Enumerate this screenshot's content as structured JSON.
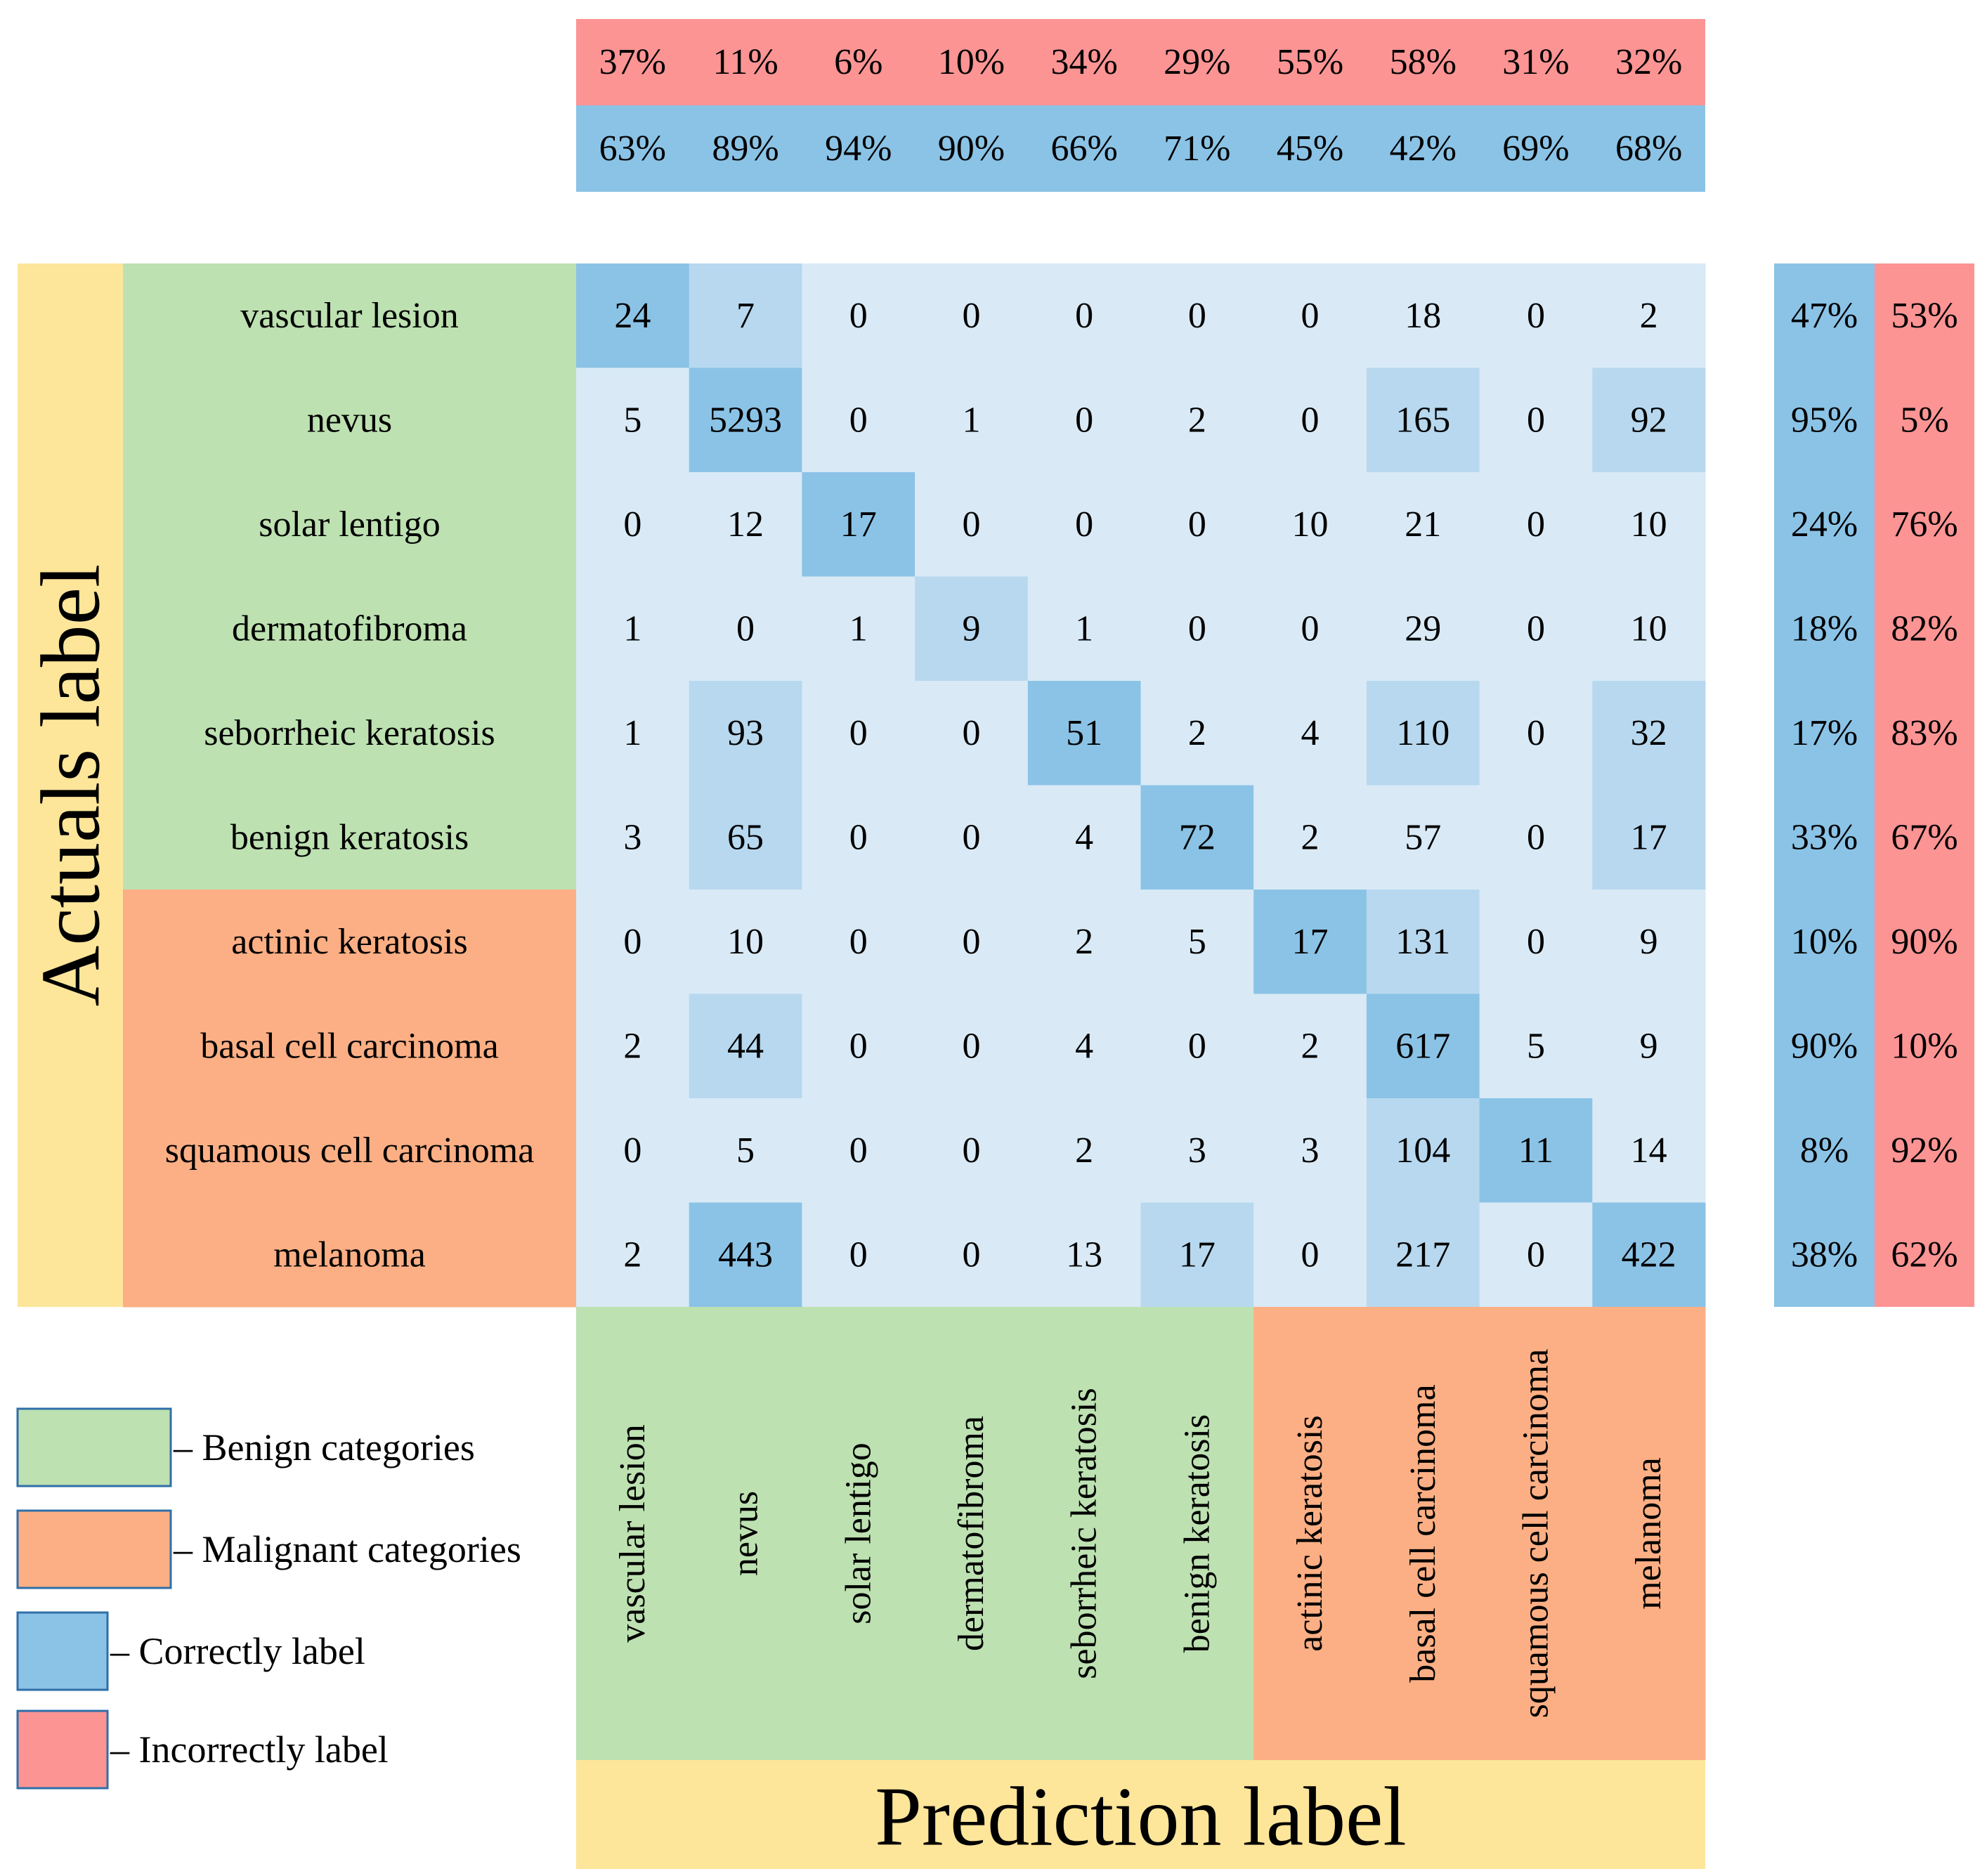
{
  "chart_data": {
    "type": "heatmap",
    "title": "",
    "ylabel": "Actuals label",
    "xlabel": "Prediction label",
    "categories": [
      "vascular lesion",
      "nevus",
      "solar lentigo",
      "dermatofibroma",
      "seborrheic keratosis",
      "benign keratosis",
      "actinic keratosis",
      "basal cell carcinoma",
      "squamous cell carcinoma",
      "melanoma"
    ],
    "category_group": [
      "benign",
      "benign",
      "benign",
      "benign",
      "benign",
      "benign",
      "malignant",
      "malignant",
      "malignant",
      "malignant"
    ],
    "matrix": [
      [
        24,
        7,
        0,
        0,
        0,
        0,
        0,
        18,
        0,
        2
      ],
      [
        5,
        5293,
        0,
        1,
        0,
        2,
        0,
        165,
        0,
        92
      ],
      [
        0,
        12,
        17,
        0,
        0,
        0,
        10,
        21,
        0,
        10
      ],
      [
        1,
        0,
        1,
        9,
        1,
        0,
        0,
        29,
        0,
        10
      ],
      [
        1,
        93,
        0,
        0,
        51,
        2,
        4,
        110,
        0,
        32
      ],
      [
        3,
        65,
        0,
        0,
        4,
        72,
        2,
        57,
        0,
        17
      ],
      [
        0,
        10,
        0,
        0,
        2,
        5,
        17,
        131,
        0,
        9
      ],
      [
        2,
        44,
        0,
        0,
        4,
        0,
        2,
        617,
        5,
        9
      ],
      [
        0,
        5,
        0,
        0,
        2,
        3,
        3,
        104,
        11,
        14
      ],
      [
        2,
        443,
        0,
        0,
        13,
        17,
        0,
        217,
        0,
        422
      ]
    ],
    "cell_shade": [
      [
        "dark",
        "light",
        "none",
        "none",
        "none",
        "none",
        "none",
        "none",
        "none",
        "none"
      ],
      [
        "none",
        "dark",
        "none",
        "none",
        "none",
        "none",
        "none",
        "light",
        "none",
        "light"
      ],
      [
        "none",
        "none",
        "dark",
        "none",
        "none",
        "none",
        "none",
        "none",
        "none",
        "none"
      ],
      [
        "none",
        "none",
        "none",
        "light",
        "none",
        "none",
        "none",
        "none",
        "none",
        "none"
      ],
      [
        "none",
        "light",
        "none",
        "none",
        "dark",
        "none",
        "none",
        "light",
        "none",
        "light"
      ],
      [
        "none",
        "light",
        "none",
        "none",
        "none",
        "dark",
        "none",
        "none",
        "none",
        "light"
      ],
      [
        "none",
        "none",
        "none",
        "none",
        "none",
        "none",
        "dark",
        "light",
        "none",
        "none"
      ],
      [
        "none",
        "light",
        "none",
        "none",
        "none",
        "none",
        "none",
        "dark",
        "none",
        "none"
      ],
      [
        "none",
        "none",
        "none",
        "none",
        "none",
        "none",
        "none",
        "light",
        "dark",
        "none"
      ],
      [
        "none",
        "dark",
        "none",
        "none",
        "none",
        "light",
        "none",
        "light",
        "none",
        "dark"
      ]
    ],
    "column_incorrect": [
      "37%",
      "11%",
      "6%",
      "10%",
      "34%",
      "29%",
      "55%",
      "58%",
      "31%",
      "32%"
    ],
    "column_correct": [
      "63%",
      "89%",
      "94%",
      "90%",
      "66%",
      "71%",
      "45%",
      "42%",
      "69%",
      "68%"
    ],
    "row_correct": [
      "47%",
      "95%",
      "24%",
      "18%",
      "17%",
      "33%",
      "10%",
      "90%",
      "8%",
      "38%"
    ],
    "row_incorrect": [
      "53%",
      "5%",
      "76%",
      "82%",
      "83%",
      "67%",
      "90%",
      "10%",
      "92%",
      "62%"
    ],
    "legend": [
      {
        "label": "– Benign categories",
        "color_key": "benign"
      },
      {
        "label": "– Malignant categories",
        "color_key": "malignant"
      },
      {
        "label": "– Correctly label",
        "color_key": "correct"
      },
      {
        "label": "– Incorrectly label",
        "color_key": "incorrect"
      }
    ],
    "legend_position": "bottom-left",
    "colors": {
      "benign": "#bde1b1",
      "malignant": "#fcaf84",
      "correct": "#8bc3e6",
      "incorrect": "#fc9494",
      "axis_band": "#fde59a",
      "cell_base": "#d9eaf6",
      "cell_light": "#b7d8ef",
      "cell_dark": "#8bc3e6"
    }
  }
}
